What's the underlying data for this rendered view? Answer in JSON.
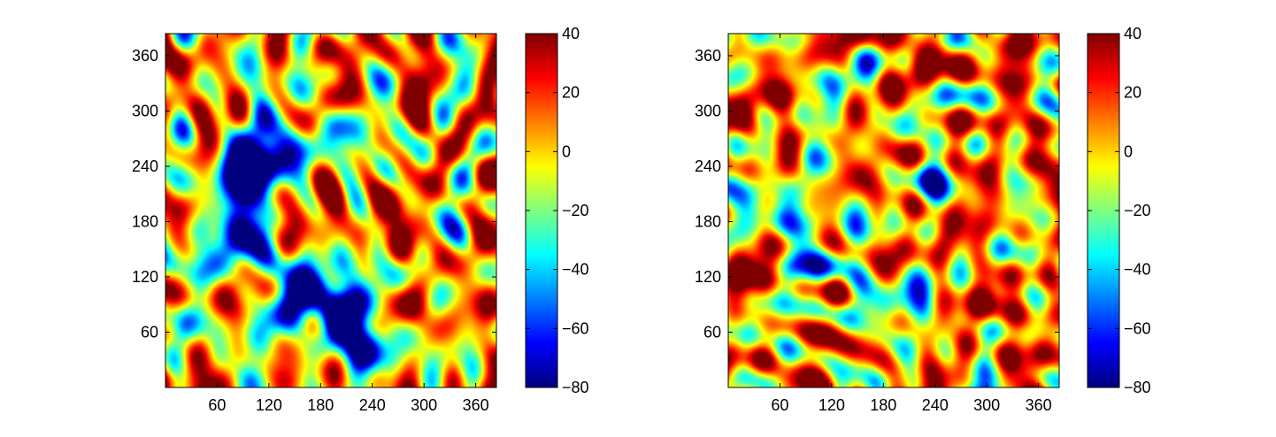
{
  "chart_data": [
    {
      "type": "heatmap",
      "title": "",
      "xlabel": "",
      "ylabel": "",
      "xlim": [
        0,
        384
      ],
      "ylim": [
        0,
        384
      ],
      "xticks": [
        60,
        120,
        180,
        240,
        300,
        360
      ],
      "yticks": [
        60,
        120,
        180,
        240,
        300,
        360
      ],
      "colorbar": {
        "range": [
          -80,
          40
        ],
        "ticks": [
          40,
          20,
          0,
          -20,
          -40,
          -60,
          -80
        ],
        "colormap": "jet"
      },
      "features": {
        "baseline": 5,
        "deep_regions": [
          {
            "x": 95,
            "y": 240,
            "depth": -75
          },
          {
            "x": 120,
            "y": 255,
            "depth": -70
          },
          {
            "x": 80,
            "y": 210,
            "depth": -60
          },
          {
            "x": 100,
            "y": 170,
            "depth": -60
          },
          {
            "x": 75,
            "y": 160,
            "depth": -55
          },
          {
            "x": 165,
            "y": 95,
            "depth": -75
          },
          {
            "x": 195,
            "y": 90,
            "depth": -65
          },
          {
            "x": 215,
            "y": 60,
            "depth": -65
          },
          {
            "x": 240,
            "y": 40,
            "depth": -60
          },
          {
            "x": 150,
            "y": 80,
            "depth": -50
          },
          {
            "x": 125,
            "y": 310,
            "depth": -35
          },
          {
            "x": 190,
            "y": 280,
            "depth": -35
          },
          {
            "x": 20,
            "y": 80,
            "depth": -40
          }
        ]
      }
    },
    {
      "type": "heatmap",
      "title": "",
      "xlabel": "",
      "ylabel": "",
      "xlim": [
        0,
        384
      ],
      "ylim": [
        0,
        384
      ],
      "xticks": [
        60,
        120,
        180,
        240,
        300,
        360
      ],
      "yticks": [
        60,
        120,
        180,
        240,
        300,
        360
      ],
      "colorbar": {
        "range": [
          -80,
          40
        ],
        "ticks": [
          40,
          20,
          0,
          -20,
          -40,
          -60,
          -80
        ],
        "colormap": "jet"
      },
      "features": {
        "baseline": 8,
        "deep_regions": [
          {
            "x": 80,
            "y": 155,
            "depth": -55
          },
          {
            "x": 150,
            "y": 115,
            "depth": -60
          },
          {
            "x": 110,
            "y": 265,
            "depth": -45
          },
          {
            "x": 235,
            "y": 225,
            "depth": -45
          },
          {
            "x": 210,
            "y": 65,
            "depth": -40
          },
          {
            "x": 40,
            "y": 190,
            "depth": -30
          }
        ]
      }
    }
  ]
}
